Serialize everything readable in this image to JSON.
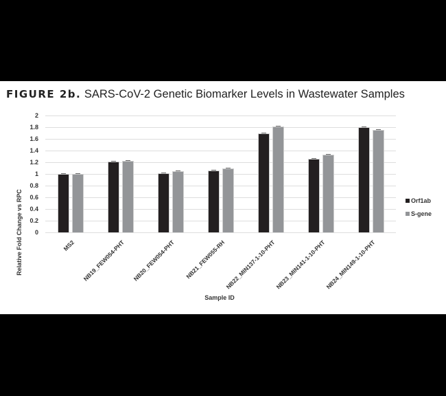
{
  "figure": {
    "label": "FIGURE 2b.",
    "title": "SARS-CoV-2 Genetic Biomarker Levels in Wastewater Samples"
  },
  "colors": {
    "orf1ab": "#231f20",
    "s_gene": "#939598",
    "grid": "#dddddd",
    "background": "#000000",
    "panel": "#ffffff"
  },
  "chart_data": {
    "type": "bar",
    "title": "SARS-CoV-2 Genetic Biomarker Levels in Wastewater Samples",
    "xlabel": "Sample ID",
    "ylabel": "Relative Fold Change vs RPC",
    "ylim": [
      0,
      2
    ],
    "yticks": [
      "0",
      "0.2",
      "0.4",
      "0.6",
      "0.8",
      "1",
      "1.2",
      "1.4",
      "1.6",
      "1.8",
      "2"
    ],
    "grid": true,
    "legend_position": "right",
    "categories": [
      "MS2",
      "NB19_FEW054-PHT",
      "NB20_FEW054-PHT",
      "NB21_FEW055-RH",
      "NB22_MIN137-1-10-PHT",
      "NB23_MIN141-1-10-PHT",
      "NB24_MIN149-1-10-PHT"
    ],
    "series": [
      {
        "name": "Orf1ab",
        "color": "#231f20",
        "values": [
          1.0,
          1.21,
          1.01,
          1.06,
          1.69,
          1.26,
          1.8
        ]
      },
      {
        "name": "S-gene",
        "color": "#939598",
        "values": [
          1.0,
          1.22,
          1.05,
          1.09,
          1.81,
          1.33,
          1.75
        ]
      }
    ]
  }
}
